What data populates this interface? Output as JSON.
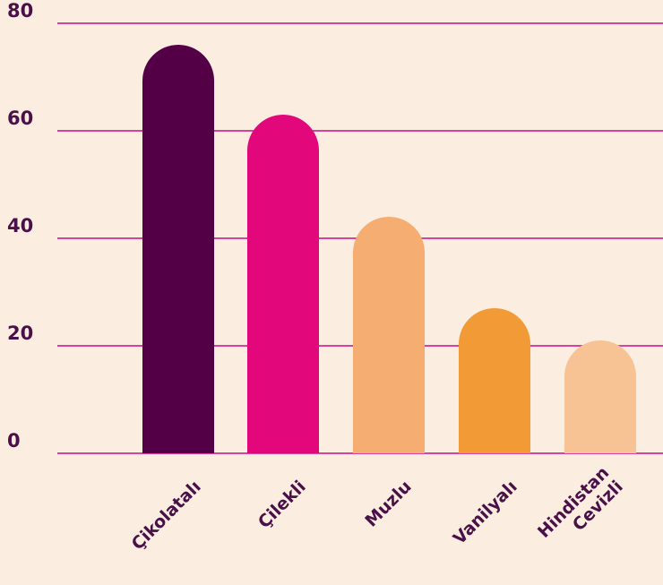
{
  "chart_data": {
    "type": "bar",
    "categories": [
      "Çikolatalı",
      "Çilekli",
      "Muzlu",
      "Vanilyalı",
      "Hindistan Cevizli"
    ],
    "category_lines": [
      [
        "Çikolatalı"
      ],
      [
        "Çilekli"
      ],
      [
        "Muzlu"
      ],
      [
        "Vanilyalı"
      ],
      [
        "Hindistan",
        "Cevizli"
      ]
    ],
    "values": [
      76,
      63,
      44,
      27,
      21
    ],
    "bar_colors": [
      "#540046",
      "#e3077c",
      "#f5ad72",
      "#f29b36",
      "#f7c395"
    ],
    "yticks": [
      0,
      20,
      40,
      60,
      80
    ],
    "ylim": [
      0,
      80
    ],
    "grid": true,
    "gridline_color": "#d6439c",
    "background_color": "#fbeee0",
    "label_color": "#4a1048",
    "title": "",
    "xlabel": "",
    "ylabel": ""
  }
}
